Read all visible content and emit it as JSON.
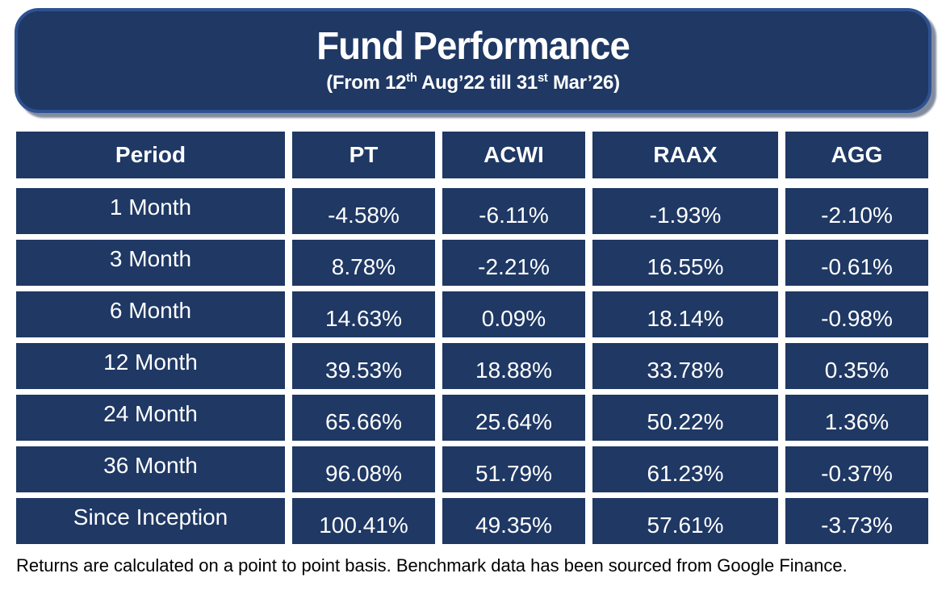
{
  "banner": {
    "title": "Fund Performance",
    "subtitle": {
      "pre": "(From 12",
      "sup1": "th",
      "mid": " Aug’22 till 31",
      "sup2": "st",
      "post": " Mar’26)"
    }
  },
  "chart_data": {
    "type": "table",
    "title": "Fund Performance",
    "subtitle": "(From 12th Aug’22 till 31st Mar’26)",
    "columns": [
      "Period",
      "PT",
      "ACWI",
      "RAAX",
      "AGG"
    ],
    "rows": [
      {
        "period": "1 Month",
        "values": [
          "-4.58%",
          "-6.11%",
          "-1.93%",
          "-2.10%"
        ]
      },
      {
        "period": "3 Month",
        "values": [
          "8.78%",
          "-2.21%",
          "16.55%",
          "-0.61%"
        ]
      },
      {
        "period": "6 Month",
        "values": [
          "14.63%",
          "0.09%",
          "18.14%",
          "-0.98%"
        ]
      },
      {
        "period": "12 Month",
        "values": [
          "39.53%",
          "18.88%",
          "33.78%",
          "0.35%"
        ]
      },
      {
        "period": "24 Month",
        "values": [
          "65.66%",
          "25.64%",
          "50.22%",
          "1.36%"
        ]
      },
      {
        "period": "36 Month",
        "values": [
          "96.08%",
          "51.79%",
          "61.23%",
          "-0.37%"
        ]
      },
      {
        "period": "Since Inception",
        "values": [
          "100.41%",
          "49.35%",
          "57.61%",
          "-3.73%"
        ]
      }
    ]
  },
  "footnote": "Returns are calculated on a point to point basis. Benchmark data has been sourced from Google Finance.",
  "colors": {
    "cell_bg": "#1f3864",
    "banner_bg": "#1f3864",
    "banner_border": "#2e5191",
    "text_on_dark": "#ffffff",
    "footnote_text": "#000000"
  }
}
